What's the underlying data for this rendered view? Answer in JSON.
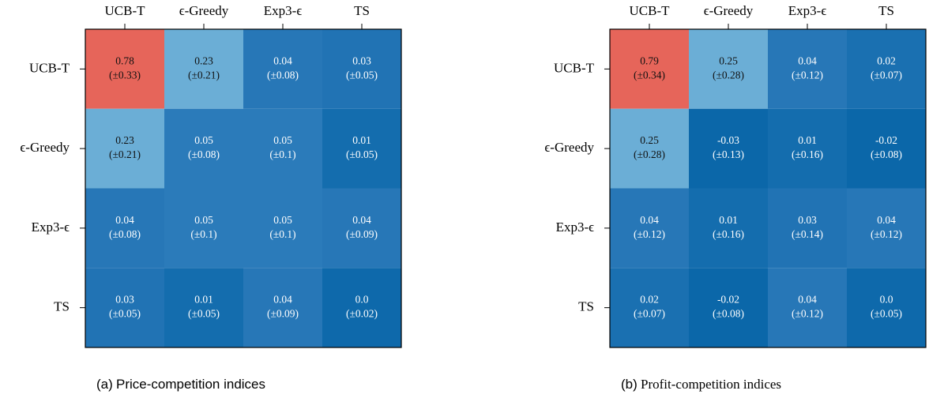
{
  "chart_data": [
    {
      "type": "heatmap",
      "caption_label": "(a)",
      "caption": "Price-competition indices",
      "x_categories": [
        "UCB-T",
        "ϵ-Greedy",
        "Exp3-ϵ",
        "TS"
      ],
      "y_categories": [
        "UCB-T",
        "ϵ-Greedy",
        "Exp3-ϵ",
        "TS"
      ],
      "values": [
        [
          0.78,
          0.23,
          0.04,
          0.03
        ],
        [
          0.23,
          0.05,
          0.05,
          0.01
        ],
        [
          0.04,
          0.05,
          0.05,
          0.04
        ],
        [
          0.03,
          0.01,
          0.04,
          0.0
        ]
      ],
      "value_labels": [
        [
          "0.78",
          "0.23",
          "0.04",
          "0.03"
        ],
        [
          "0.23",
          "0.05",
          "0.05",
          "0.01"
        ],
        [
          "0.04",
          "0.05",
          "0.05",
          "0.04"
        ],
        [
          "0.03",
          "0.01",
          "0.04",
          "0.0"
        ]
      ],
      "errors": [
        [
          0.33,
          0.21,
          0.08,
          0.05
        ],
        [
          0.21,
          0.08,
          0.1,
          0.05
        ],
        [
          0.08,
          0.1,
          0.1,
          0.09
        ],
        [
          0.05,
          0.05,
          0.09,
          0.02
        ]
      ],
      "error_labels": [
        [
          "(±0.33)",
          "(±0.21)",
          "(±0.08)",
          "(±0.05)"
        ],
        [
          "(±0.21)",
          "(±0.08)",
          "(±0.1)",
          "(±0.05)"
        ],
        [
          "(±0.08)",
          "(±0.1)",
          "(±0.1)",
          "(±0.09)"
        ],
        [
          "(±0.05)",
          "(±0.05)",
          "(±0.09)",
          "(±0.02)"
        ]
      ],
      "colors": [
        [
          "#e6655a",
          "#6baed6",
          "#2777b7",
          "#2173b4"
        ],
        [
          "#6baed6",
          "#2b7bba",
          "#2b7bba",
          "#146dae"
        ],
        [
          "#2777b7",
          "#2b7bba",
          "#2b7bba",
          "#2777b7"
        ],
        [
          "#2173b4",
          "#146dae",
          "#2777b7",
          "#0e69ab"
        ]
      ]
    },
    {
      "type": "heatmap",
      "caption_label": "(b)",
      "caption": "Profit-competition indices",
      "x_categories": [
        "UCB-T",
        "ϵ-Greedy",
        "Exp3-ϵ",
        "TS"
      ],
      "y_categories": [
        "UCB-T",
        "ϵ-Greedy",
        "Exp3-ϵ",
        "TS"
      ],
      "values": [
        [
          0.79,
          0.25,
          0.04,
          0.02
        ],
        [
          0.25,
          -0.03,
          0.01,
          -0.02
        ],
        [
          0.04,
          0.01,
          0.03,
          0.04
        ],
        [
          0.02,
          -0.02,
          0.04,
          0.0
        ]
      ],
      "value_labels": [
        [
          "0.79",
          "0.25",
          "0.04",
          "0.02"
        ],
        [
          "0.25",
          "-0.03",
          "0.01",
          "-0.02"
        ],
        [
          "0.04",
          "0.01",
          "0.03",
          "0.04"
        ],
        [
          "0.02",
          "-0.02",
          "0.04",
          "0.0"
        ]
      ],
      "errors": [
        [
          0.34,
          0.28,
          0.12,
          0.07
        ],
        [
          0.28,
          0.13,
          0.16,
          0.08
        ],
        [
          0.12,
          0.16,
          0.14,
          0.12
        ],
        [
          0.07,
          0.08,
          0.12,
          0.05
        ]
      ],
      "error_labels": [
        [
          "(±0.34)",
          "(±0.28)",
          "(±0.12)",
          "(±0.07)"
        ],
        [
          "(±0.28)",
          "(±0.13)",
          "(±0.16)",
          "(±0.08)"
        ],
        [
          "(±0.12)",
          "(±0.16)",
          "(±0.14)",
          "(±0.12)"
        ],
        [
          "(±0.07)",
          "(±0.08)",
          "(±0.12)",
          "(±0.05)"
        ]
      ],
      "colors": [
        [
          "#e6655a",
          "#6baed6",
          "#2777b7",
          "#1a70b1"
        ],
        [
          "#6baed6",
          "#0b67a9",
          "#146dae",
          "#0b67a9"
        ],
        [
          "#2777b7",
          "#146dae",
          "#2173b4",
          "#2777b7"
        ],
        [
          "#1a70b1",
          "#0b67a9",
          "#2777b7",
          "#0e69ab"
        ]
      ]
    }
  ]
}
